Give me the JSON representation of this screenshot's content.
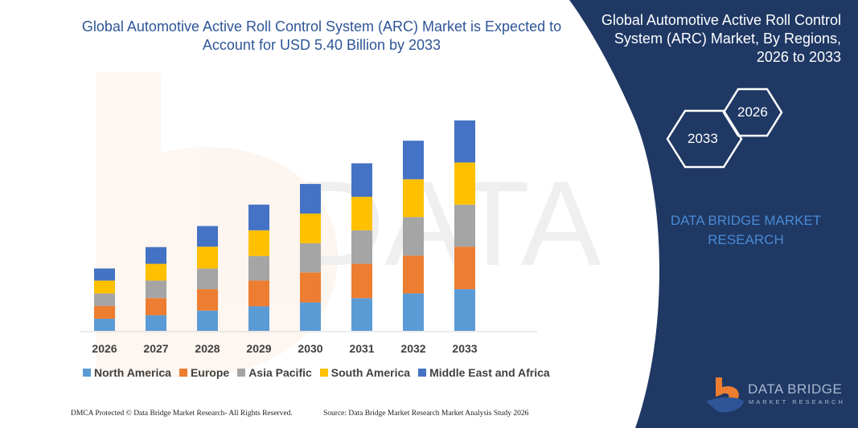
{
  "title": "Global Automotive Active Roll Control System (ARC) Market is Expected to Account for USD 5.40 Billion by 2033",
  "side_panel": {
    "title": "Global Automotive Active Roll Control System (ARC) Market, By Regions, 2026 to 2033",
    "hex_start": "2026",
    "hex_end": "2033",
    "brand": "DATA BRIDGE MARKET RESEARCH",
    "logo_text": "DATA BRIDGE",
    "logo_sub": "MARKET RESEARCH",
    "bg_color": "#1f3864"
  },
  "chart_data": {
    "type": "bar",
    "stacked": true,
    "categories": [
      "2026",
      "2027",
      "2028",
      "2029",
      "2030",
      "2031",
      "2032",
      "2033"
    ],
    "series": [
      {
        "name": "North America",
        "color": "#5b9bd5",
        "values": [
          0.31,
          0.4,
          0.52,
          0.63,
          0.73,
          0.84,
          0.96,
          1.07
        ]
      },
      {
        "name": "Europe",
        "color": "#ed7d31",
        "values": [
          0.33,
          0.44,
          0.55,
          0.66,
          0.77,
          0.88,
          0.97,
          1.09
        ]
      },
      {
        "name": "Asia Pacific",
        "color": "#a5a5a5",
        "values": [
          0.32,
          0.45,
          0.53,
          0.63,
          0.75,
          0.86,
          0.99,
          1.08
        ]
      },
      {
        "name": "South America",
        "color": "#ffc000",
        "values": [
          0.33,
          0.43,
          0.56,
          0.66,
          0.76,
          0.86,
          0.97,
          1.08
        ]
      },
      {
        "name": "Middle East and Africa",
        "color": "#4472c4",
        "values": [
          0.31,
          0.43,
          0.53,
          0.66,
          0.76,
          0.86,
          0.99,
          1.08
        ]
      }
    ],
    "ylim": [
      0,
      5.4
    ],
    "grid": false,
    "legend": "bottom"
  },
  "footer": {
    "left": "DMCA Protected © Data Bridge Market Research-  All Rights Reserved.",
    "right": "Source: Data Bridge Market Research  Market Analysis Study 2026"
  }
}
